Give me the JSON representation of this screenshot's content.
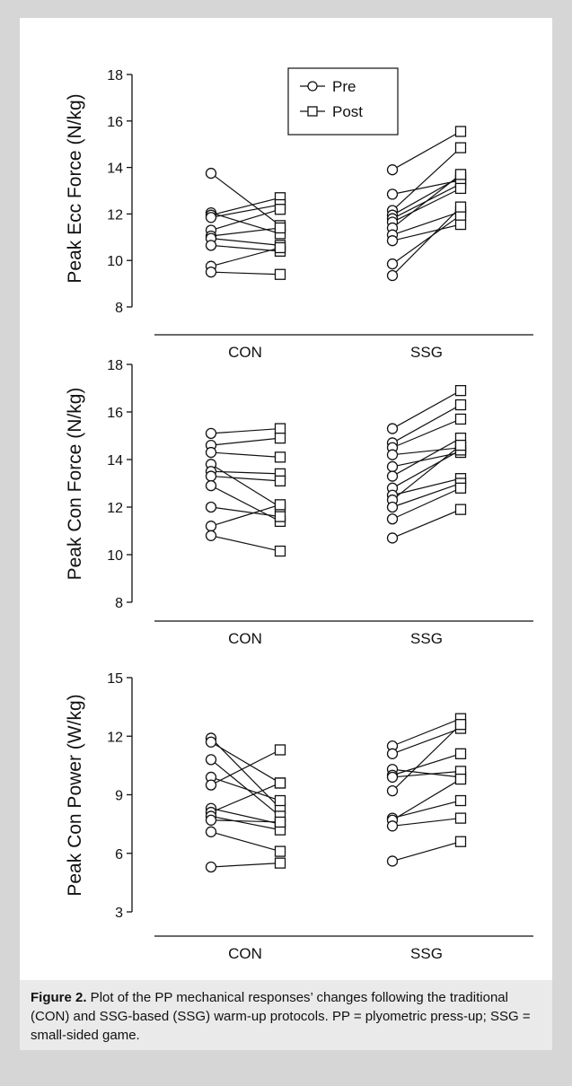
{
  "chart_data": [
    {
      "type": "line",
      "ylabel": "Peak Ecc Force (N/kg)",
      "ylim": [
        8,
        18
      ],
      "yticks": [
        8,
        10,
        12,
        14,
        16,
        18
      ],
      "categories": [
        "CON",
        "SSG"
      ],
      "legend": [
        "Pre",
        "Post"
      ],
      "legend_position": "top-center",
      "groups": [
        {
          "name": "CON",
          "pairs": [
            [
              13.75,
              11.5
            ],
            [
              12.05,
              11.15
            ],
            [
              11.95,
              12.7
            ],
            [
              11.85,
              12.4
            ],
            [
              11.3,
              12.2
            ],
            [
              11.05,
              11.4
            ],
            [
              10.95,
              10.65
            ],
            [
              10.65,
              10.4
            ],
            [
              9.75,
              10.55
            ],
            [
              9.5,
              9.4
            ]
          ]
        },
        {
          "name": "SSG",
          "pairs": [
            [
              13.9,
              15.55
            ],
            [
              12.85,
              13.45
            ],
            [
              12.15,
              14.85
            ],
            [
              11.95,
              13.6
            ],
            [
              11.8,
              13.3
            ],
            [
              11.65,
              13.1
            ],
            [
              11.4,
              13.7
            ],
            [
              11.1,
              12.1
            ],
            [
              10.85,
              11.55
            ],
            [
              9.85,
              11.95
            ],
            [
              9.35,
              12.3
            ]
          ]
        }
      ]
    },
    {
      "type": "line",
      "ylabel": "Peak Con Force (N/kg)",
      "ylim": [
        8,
        18
      ],
      "yticks": [
        8,
        10,
        12,
        14,
        16,
        18
      ],
      "categories": [
        "CON",
        "SSG"
      ],
      "groups": [
        {
          "name": "CON",
          "pairs": [
            [
              15.1,
              15.3
            ],
            [
              14.6,
              14.9
            ],
            [
              14.3,
              14.1
            ],
            [
              13.8,
              12.0
            ],
            [
              13.5,
              13.4
            ],
            [
              13.3,
              13.1
            ],
            [
              12.9,
              11.4
            ],
            [
              12.0,
              11.6
            ],
            [
              11.2,
              12.1
            ],
            [
              10.8,
              10.15
            ]
          ]
        },
        {
          "name": "SSG",
          "pairs": [
            [
              15.3,
              16.9
            ],
            [
              14.7,
              16.3
            ],
            [
              14.5,
              15.7
            ],
            [
              14.2,
              14.5
            ],
            [
              13.7,
              14.3
            ],
            [
              13.3,
              14.9
            ],
            [
              12.8,
              14.4
            ],
            [
              12.5,
              13.2
            ],
            [
              12.3,
              14.6
            ],
            [
              12.0,
              13.0
            ],
            [
              11.5,
              12.8
            ],
            [
              10.7,
              11.9
            ]
          ]
        }
      ]
    },
    {
      "type": "line",
      "ylabel": "Peak Con Power (W/kg)",
      "ylim": [
        3,
        15
      ],
      "yticks": [
        3,
        6,
        9,
        12,
        15
      ],
      "categories": [
        "CON",
        "SSG"
      ],
      "groups": [
        {
          "name": "CON",
          "pairs": [
            [
              11.9,
              8.3
            ],
            [
              11.7,
              9.6
            ],
            [
              10.8,
              7.9
            ],
            [
              9.9,
              8.7
            ],
            [
              9.5,
              11.3
            ],
            [
              8.3,
              7.5
            ],
            [
              8.1,
              9.6
            ],
            [
              7.9,
              7.2
            ],
            [
              7.7,
              7.6
            ],
            [
              7.1,
              6.1
            ],
            [
              5.3,
              5.5
            ]
          ]
        },
        {
          "name": "SSG",
          "pairs": [
            [
              11.5,
              12.9
            ],
            [
              11.1,
              12.4
            ],
            [
              10.3,
              9.9
            ],
            [
              10.0,
              11.1
            ],
            [
              9.9,
              10.2
            ],
            [
              9.2,
              12.6
            ],
            [
              7.8,
              8.7
            ],
            [
              7.7,
              9.8
            ],
            [
              7.4,
              7.8
            ],
            [
              5.6,
              6.6
            ]
          ]
        }
      ]
    }
  ],
  "caption": {
    "label": "Figure 2.",
    "text": " Plot of the PP mechanical responses’ changes following the traditional (CON) and SSG-based (SSG) warm-up protocols. PP = plyometric press-up; SSG = small-sided game."
  },
  "colors": {
    "background": "#d6d6d6",
    "panel": "#ffffff",
    "caption_bg": "#eaeaea",
    "ink": "#111111"
  }
}
